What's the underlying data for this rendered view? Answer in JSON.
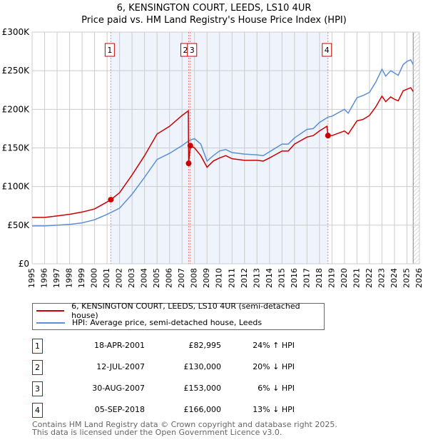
{
  "chart_data": {
    "type": "line",
    "title": "6, KENSINGTON COURT, LEEDS, LS10 4UR",
    "subtitle": "Price paid vs. HM Land Registry's House Price Index (HPI)",
    "xlim": [
      1995,
      2026
    ],
    "ylim": [
      0,
      300000
    ],
    "x_ticks": [
      "1995",
      "1996",
      "1997",
      "1998",
      "1999",
      "2000",
      "2001",
      "2002",
      "2003",
      "2004",
      "2005",
      "2006",
      "2007",
      "2008",
      "2009",
      "2010",
      "2011",
      "2012",
      "2013",
      "2014",
      "2015",
      "2016",
      "2017",
      "2018",
      "2019",
      "2020",
      "2021",
      "2022",
      "2023",
      "2024",
      "2025",
      "2026"
    ],
    "y_ticks": [
      {
        "v": 0,
        "label": "£0"
      },
      {
        "v": 50000,
        "label": "£50K"
      },
      {
        "v": 100000,
        "label": "£100K"
      },
      {
        "v": 150000,
        "label": "£150K"
      },
      {
        "v": 200000,
        "label": "£200K"
      },
      {
        "v": 250000,
        "label": "£250K"
      },
      {
        "v": 300000,
        "label": "£300K"
      }
    ],
    "grid": true,
    "shaded_range": [
      2001.3,
      2018.68
    ],
    "forecast_from": 2025.5,
    "series": [
      {
        "name": "6, KENSINGTON COURT, LEEDS, LS10 4UR (semi-detached house)",
        "color": "#cc0000",
        "x": [
          1995,
          1996,
          1997,
          1998,
          1999,
          2000,
          2001,
          2001.3,
          2002,
          2003,
          2004,
          2005,
          2006,
          2007,
          2007.5,
          2007.53,
          2007.66,
          2008,
          2008.5,
          2009,
          2009.5,
          2010,
          2010.5,
          2011,
          2012,
          2013,
          2013.5,
          2014,
          2015,
          2015.5,
          2016,
          2017,
          2017.5,
          2018,
          2018.6,
          2018.68,
          2019,
          2020,
          2020.3,
          2021,
          2021.5,
          2022,
          2022.5,
          2023,
          2023.3,
          2023.7,
          2024,
          2024.3,
          2024.7,
          2025,
          2025.3,
          2025.5
        ],
        "y": [
          60000,
          60000,
          62000,
          64000,
          67000,
          71000,
          80000,
          83000,
          92000,
          115000,
          140000,
          168000,
          178000,
          192000,
          198000,
          130000,
          153000,
          150000,
          140000,
          125000,
          133000,
          137000,
          140000,
          136000,
          134000,
          134000,
          133000,
          137000,
          146000,
          146000,
          155000,
          164000,
          166000,
          172000,
          178000,
          166000,
          166000,
          172000,
          168000,
          185000,
          187000,
          192000,
          203000,
          217000,
          210000,
          216000,
          213000,
          211000,
          224000,
          226000,
          228000,
          223000
        ]
      },
      {
        "name": "HPI: Average price, semi-detached house, Leeds",
        "color": "#5b8fd6",
        "x": [
          1995,
          1996,
          1997,
          1998,
          1999,
          2000,
          2001,
          2002,
          2003,
          2004,
          2005,
          2006,
          2007,
          2007.6,
          2008,
          2008.5,
          2009,
          2009.5,
          2010,
          2010.5,
          2011,
          2012,
          2013,
          2013.5,
          2014,
          2015,
          2015.5,
          2016,
          2017,
          2017.5,
          2018,
          2018.7,
          2019,
          2020,
          2020.3,
          2021,
          2021.5,
          2022,
          2022.5,
          2023,
          2023.3,
          2023.7,
          2024,
          2024.3,
          2024.7,
          2025,
          2025.3,
          2025.5
        ],
        "y": [
          49000,
          49000,
          50000,
          51000,
          53000,
          57000,
          64000,
          72000,
          90000,
          112000,
          135000,
          143000,
          153000,
          160000,
          162000,
          155000,
          133000,
          140000,
          146000,
          148000,
          144000,
          142000,
          141000,
          140000,
          145000,
          155000,
          155000,
          163000,
          174000,
          175000,
          183000,
          190000,
          191000,
          200000,
          195000,
          215000,
          218000,
          222000,
          235000,
          252000,
          243000,
          250000,
          247000,
          244000,
          258000,
          262000,
          264000,
          258000
        ]
      }
    ],
    "sales": [
      {
        "n": "1",
        "date": "18-APR-2001",
        "x": 2001.3,
        "price": "£82,995",
        "value": 82995,
        "hpi": "24% ↑ HPI"
      },
      {
        "n": "2",
        "date": "12-JUL-2007",
        "x": 2007.53,
        "price": "£130,000",
        "value": 130000,
        "hpi": "20% ↓ HPI"
      },
      {
        "n": "3",
        "date": "30-AUG-2007",
        "x": 2007.66,
        "price": "£153,000",
        "value": 153000,
        "hpi": "6% ↓ HPI"
      },
      {
        "n": "4",
        "date": "05-SEP-2018",
        "x": 2018.68,
        "price": "£166,000",
        "value": 166000,
        "hpi": "13% ↓ HPI"
      }
    ]
  },
  "footer": {
    "line1": "Contains HM Land Registry data © Crown copyright and database right 2025.",
    "line2": "This data is licensed under the Open Government Licence v3.0."
  }
}
